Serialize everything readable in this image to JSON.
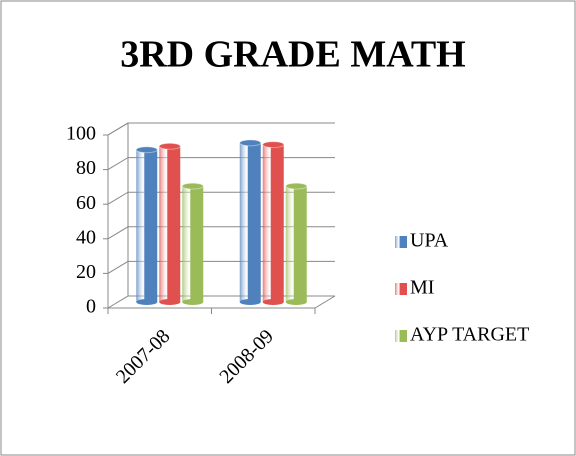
{
  "chart_data": {
    "type": "bar3d",
    "title": "3RD GRADE MATH",
    "categories": [
      "2007-08",
      "2008-09"
    ],
    "series": [
      {
        "name": "UPA",
        "color": "#4f81bd",
        "values": [
          88,
          92
        ]
      },
      {
        "name": "MI",
        "color": "#e0504e",
        "values": [
          90,
          91
        ]
      },
      {
        "name": "AYP TARGET",
        "color": "#9bbb59",
        "values": [
          67,
          67
        ]
      }
    ],
    "ylim": [
      0,
      100
    ],
    "yticks": [
      0,
      20,
      40,
      60,
      80,
      100
    ],
    "grid": true,
    "legend": "right"
  }
}
